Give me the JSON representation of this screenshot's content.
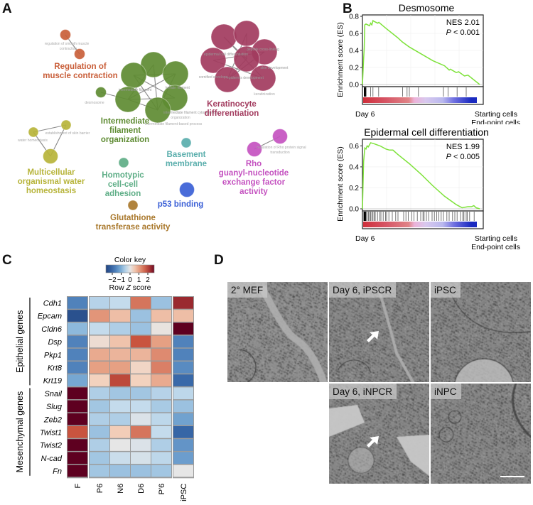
{
  "panels": {
    "a": "A",
    "b": "B",
    "c": "C",
    "d": "D"
  },
  "network": {
    "clusters": [
      {
        "id": "muscle",
        "label_lines": [
          "Regulation of",
          "muscle contraction"
        ],
        "color": "#c95f3a",
        "sublabels": [
          "regulation of smooth muscle",
          "contraction"
        ]
      },
      {
        "id": "filament",
        "label_lines": [
          "Intermediate",
          "filament",
          "organization"
        ],
        "color": "#5e8b32",
        "sublabels": [
          "desmosome",
          "intermediate filament",
          "keratin filament",
          "intermediate filament cytoskeleton",
          "organization",
          "intermediate filament-based process"
        ]
      },
      {
        "id": "kerat",
        "label_lines": [
          "Keratinocyte",
          "differentiation"
        ],
        "color": "#a23b5e",
        "sublabels": [
          "epidermal cell differentiation",
          "cornified envelope",
          "epidermis development",
          "keratinization",
          "skin development",
          "peptide cross-linking"
        ]
      },
      {
        "id": "water",
        "label_lines": [
          "Multicellular",
          "organismal water",
          "homeostasis"
        ],
        "color": "#b7b43a",
        "sublabels": [
          "establishment of skin barrier",
          "water homeostasis"
        ]
      },
      {
        "id": "homotypic",
        "label_lines": [
          "Homotypic",
          "cell-cell",
          "adhesion"
        ],
        "color": "#5fae87",
        "sublabels": []
      },
      {
        "id": "basement",
        "label_lines": [
          "Basement",
          "membrane"
        ],
        "color": "#5aaeac",
        "sublabels": []
      },
      {
        "id": "rho",
        "label_lines": [
          "Rho",
          "guanyl-nucleotide",
          "exchange factor",
          "activity"
        ],
        "color": "#c452c0",
        "sublabels": [
          "regulation of Rho protein signal",
          "transduction"
        ]
      },
      {
        "id": "p53",
        "label_lines": [
          "p53 binding"
        ],
        "color": "#3a5fd6",
        "sublabels": []
      },
      {
        "id": "glut",
        "label_lines": [
          "Glutathione",
          "transferase activity"
        ],
        "color": "#a9782c",
        "sublabels": []
      }
    ]
  },
  "chart_data": [
    {
      "type": "line",
      "title": "Desmosome",
      "ylabel": "Enrichment score (ES)",
      "ylim": [
        0,
        0.8
      ],
      "yticks": [
        "0.0",
        "0.2",
        "0.4",
        "0.6",
        "0.8"
      ],
      "ytick_values": [
        0,
        0.2,
        0.4,
        0.6,
        0.8
      ],
      "annotation": {
        "nes": "NES 2.01",
        "p_italic": "P",
        "p_rest": " < 0.001"
      },
      "x": [
        0,
        0.01,
        0.015,
        0.02,
        0.03,
        0.06,
        0.07,
        0.08,
        0.09,
        0.1,
        0.13,
        0.14,
        0.2,
        0.3,
        0.34,
        0.4,
        0.5,
        0.6,
        0.7,
        0.74,
        0.75,
        0.8,
        0.82,
        0.87,
        0.9,
        1.0
      ],
      "y": [
        0,
        0.3,
        0.42,
        0.7,
        0.71,
        0.69,
        0.72,
        0.7,
        0.75,
        0.74,
        0.72,
        0.73,
        0.66,
        0.55,
        0.5,
        0.44,
        0.36,
        0.28,
        0.22,
        0.17,
        0.18,
        0.14,
        0.15,
        0.1,
        0.11,
        0.0
      ],
      "hits": [
        0.005,
        0.01,
        0.015,
        0.02,
        0.06,
        0.08,
        0.13,
        0.34,
        0.38,
        0.4,
        0.48,
        0.7,
        0.74,
        0.82,
        0.9
      ],
      "footer": {
        "left": "Day 6",
        "right1": "Starting cells",
        "right2": "End-point cells"
      }
    },
    {
      "type": "line",
      "title": "Epidermal cell differentiation",
      "ylabel": "Enrichment score (ES)",
      "ylim": [
        0,
        0.65
      ],
      "yticks": [
        "0.0",
        "0.2",
        "0.4",
        "0.6"
      ],
      "ytick_values": [
        0,
        0.2,
        0.4,
        0.6
      ],
      "annotation": {
        "nes": "NES 1.99",
        "p_italic": "P",
        "p_rest": " < 0.005"
      },
      "x": [
        0,
        0.01,
        0.02,
        0.03,
        0.04,
        0.05,
        0.07,
        0.1,
        0.15,
        0.2,
        0.23,
        0.26,
        0.3,
        0.4,
        0.5,
        0.6,
        0.7,
        0.8,
        0.85,
        0.9,
        0.93,
        0.95,
        0.97,
        1.0
      ],
      "y": [
        0,
        0.45,
        0.58,
        0.57,
        0.6,
        0.59,
        0.63,
        0.62,
        0.6,
        0.57,
        0.56,
        0.56,
        0.52,
        0.43,
        0.33,
        0.22,
        0.12,
        0.04,
        0.01,
        0.02,
        0.02,
        0.03,
        0.01,
        0.0
      ],
      "hits": [
        0.002,
        0.005,
        0.008,
        0.012,
        0.016,
        0.02,
        0.028,
        0.04,
        0.05,
        0.06,
        0.07,
        0.08,
        0.09,
        0.1,
        0.12,
        0.14,
        0.15,
        0.17,
        0.19,
        0.2,
        0.22,
        0.25,
        0.28,
        0.3,
        0.35,
        0.37,
        0.39,
        0.42,
        0.44,
        0.47,
        0.5,
        0.52,
        0.53,
        0.55,
        0.57,
        0.6,
        0.62,
        0.64,
        0.66,
        0.68,
        0.7,
        0.73,
        0.75,
        0.78,
        0.8,
        0.82,
        0.85,
        0.87,
        0.88,
        0.9,
        0.91,
        0.93,
        0.97
      ],
      "footer": {
        "left": "Day 6",
        "right1": "Starting cells",
        "right2": "End-point cells"
      }
    },
    {
      "type": "heatmap",
      "title": "Color key",
      "colorbar_label": "Row Z score",
      "colorbar_label_italic": "Z",
      "colorbar_ticks": [
        "−2",
        "−1",
        "0",
        "1",
        "2"
      ],
      "colorbar_range": [
        -2.2,
        2.2
      ],
      "columns": [
        "F",
        "P6",
        "N6",
        "D6",
        "P′6",
        "iPSC"
      ],
      "groups": [
        {
          "name": "Epithelial genes",
          "rows": [
            "Cdh1",
            "Epcam",
            "Cldn6",
            "Dsp",
            "Pkp1",
            "Krt8",
            "Krt19"
          ]
        },
        {
          "name": "Mesenchymal genes",
          "rows": [
            "Snail",
            "Slug",
            "Zeb2",
            "Twist1",
            "Twist2",
            "N-cad",
            "Fn"
          ]
        }
      ],
      "values": [
        [
          -1.3,
          -0.4,
          -0.3,
          1.2,
          -0.6,
          1.9
        ],
        [
          -2.0,
          0.9,
          0.5,
          -0.6,
          0.5,
          0.5
        ],
        [
          -0.7,
          -0.3,
          -0.45,
          -0.6,
          0.05,
          2.3
        ],
        [
          -1.3,
          0.15,
          0.45,
          1.5,
          0.8,
          -1.3
        ],
        [
          -1.3,
          0.7,
          0.6,
          0.6,
          1.0,
          -1.3
        ],
        [
          -1.3,
          0.8,
          0.8,
          0.25,
          1.1,
          -1.2
        ],
        [
          -0.9,
          0.3,
          1.6,
          0.3,
          0.7,
          -1.6
        ],
        [
          2.3,
          -0.45,
          -0.55,
          -0.55,
          -0.4,
          -0.35
        ],
        [
          2.3,
          -0.55,
          -0.3,
          -0.3,
          -0.5,
          -0.6
        ],
        [
          2.3,
          -0.45,
          -0.45,
          -0.1,
          -0.35,
          -0.95
        ],
        [
          1.5,
          -0.6,
          0.35,
          1.2,
          -0.3,
          -1.65
        ],
        [
          2.3,
          -0.45,
          0.0,
          -0.1,
          -0.45,
          -1.1
        ],
        [
          2.3,
          -0.55,
          -0.25,
          -0.15,
          -0.35,
          -1.0
        ],
        [
          2.3,
          -0.55,
          -0.6,
          -0.6,
          -0.55,
          0.0
        ]
      ]
    }
  ],
  "em": {
    "tiles": [
      {
        "label": "2° MEF",
        "arrow": false
      },
      {
        "label": "Day 6, iPSCR",
        "arrow": true
      },
      {
        "label": "iPSC",
        "arrow": false
      },
      {
        "label": "Day 6, iNPCR",
        "arrow": true
      },
      {
        "label": "iNPC",
        "arrow": false,
        "scalebar": true
      }
    ]
  }
}
